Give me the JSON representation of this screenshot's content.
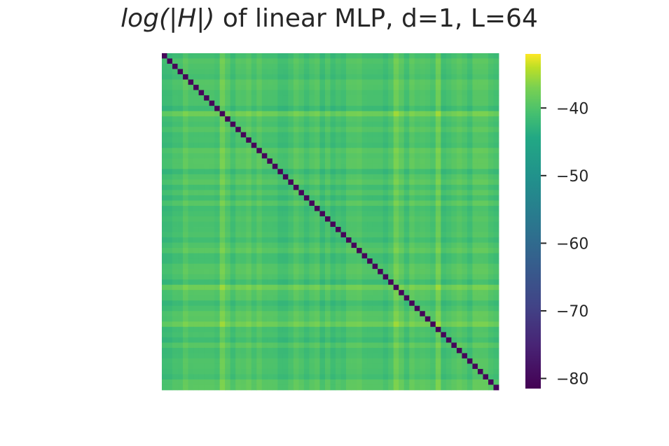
{
  "chart_data": {
    "type": "heatmap",
    "title_prefix": "log(|H|)",
    "title_suffix": " of linear MLP, d=1, L=64",
    "n": 64,
    "diagonal_value": -80.5,
    "offdiag_base": -40.5,
    "bright_rows": [
      11,
      44,
      51
    ],
    "bright_cols": [
      11,
      44,
      52
    ],
    "grid": false,
    "colormap": "viridis",
    "colorbar": {
      "min": -81.5,
      "max": -32,
      "ticks": [
        -40,
        -50,
        -60,
        -70,
        -80
      ],
      "tick_labels": [
        "−40",
        "−50",
        "−60",
        "−70",
        "−80"
      ]
    }
  }
}
